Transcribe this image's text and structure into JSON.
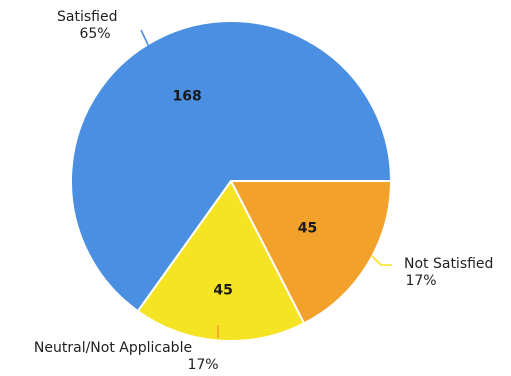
{
  "chart_data": {
    "type": "pie",
    "slices": [
      {
        "label": "Satisfied",
        "value": 168,
        "percent_label": "65%",
        "color": "#4a8fe2"
      },
      {
        "label": "Not Satisfied",
        "value": 45,
        "percent_label": "17%",
        "color": "#f5e423"
      },
      {
        "label": "Neutral/Not Applicable",
        "value": 45,
        "percent_label": "17%",
        "color": "#f2a12a"
      }
    ],
    "legend": "none",
    "data_labels": "inside",
    "category_labels": "outside"
  }
}
